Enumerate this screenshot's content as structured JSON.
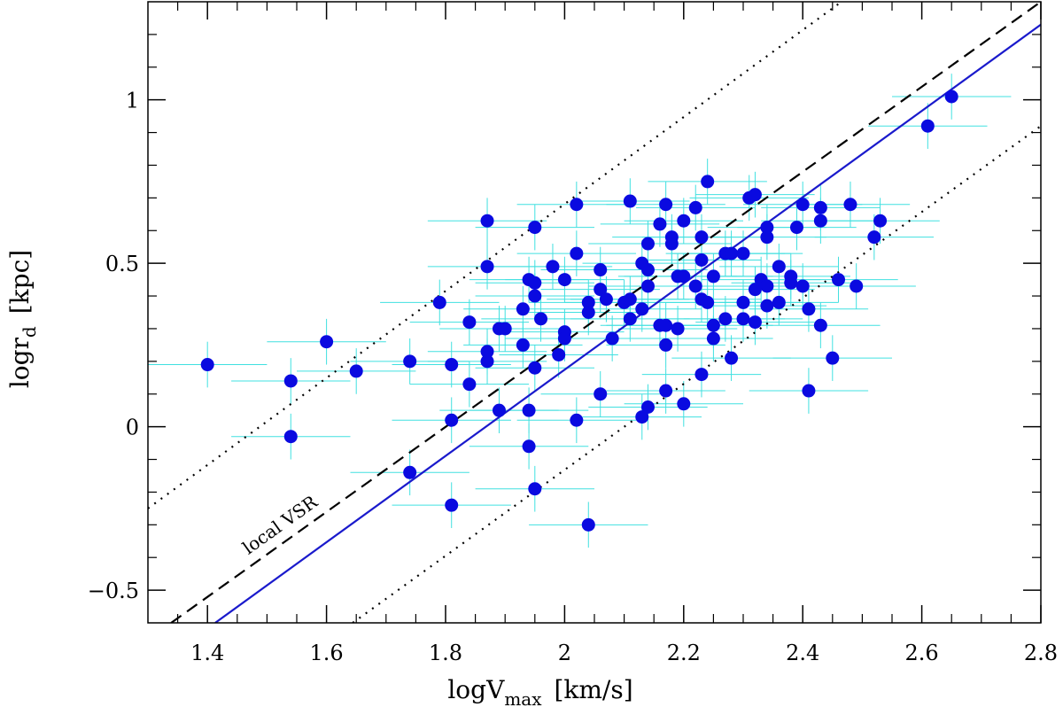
{
  "chart_data": {
    "type": "scatter",
    "xlabel": {
      "main": "logV",
      "sub": "max",
      "unit": "[km/s]"
    },
    "ylabel": {
      "main": "logr",
      "sub": "d",
      "unit": "[kpc]"
    },
    "xlim": [
      1.3,
      2.8
    ],
    "ylim": [
      -0.6,
      1.3
    ],
    "xticks": [
      1.4,
      1.6,
      1.8,
      2,
      2.2,
      2.4,
      2.6,
      2.8
    ],
    "yticks": [
      {
        "value": -0.5,
        "label": "−0.5"
      },
      0,
      0.5,
      1
    ],
    "xminor": [
      1.35,
      1.45,
      1.5,
      1.55,
      1.65,
      1.7,
      1.75,
      1.85,
      1.9,
      1.95,
      2.05,
      2.1,
      2.15,
      2.25,
      2.3,
      2.35,
      2.45,
      2.5,
      2.55,
      2.65,
      2.7,
      2.75
    ],
    "yminor": [
      -0.4,
      -0.3,
      -0.2,
      -0.1,
      0.1,
      0.2,
      0.3,
      0.4,
      0.6,
      0.7,
      0.8,
      0.9,
      1.1,
      1.2
    ],
    "point_color": "#0a0ae0",
    "error_color": "#40e0e0",
    "xerr": 0.1,
    "yerr": 0.07,
    "x": [
      1.4,
      1.54,
      1.54,
      1.6,
      1.65,
      1.74,
      1.74,
      1.79,
      1.81,
      1.81,
      1.81,
      1.84,
      1.84,
      1.87,
      1.87,
      1.87,
      1.87,
      1.89,
      1.89,
      1.9,
      1.93,
      1.93,
      1.94,
      1.94,
      1.94,
      1.95,
      1.95,
      1.95,
      1.95,
      1.95,
      1.96,
      1.98,
      1.99,
      2.0,
      2.0,
      2.0,
      2.02,
      2.02,
      2.02,
      2.04,
      2.04,
      2.04,
      2.06,
      2.06,
      2.06,
      2.07,
      2.08,
      2.1,
      2.11,
      2.11,
      2.11,
      2.13,
      2.13,
      2.13,
      2.14,
      2.14,
      2.14,
      2.14,
      2.16,
      2.16,
      2.17,
      2.17,
      2.17,
      2.17,
      2.18,
      2.18,
      2.19,
      2.19,
      2.2,
      2.2,
      2.2,
      2.22,
      2.22,
      2.23,
      2.23,
      2.23,
      2.23,
      2.24,
      2.24,
      2.25,
      2.25,
      2.25,
      2.27,
      2.27,
      2.28,
      2.28,
      2.3,
      2.3,
      2.3,
      2.31,
      2.32,
      2.32,
      2.32,
      2.33,
      2.34,
      2.34,
      2.34,
      2.34,
      2.36,
      2.36,
      2.38,
      2.38,
      2.39,
      2.4,
      2.4,
      2.41,
      2.41,
      2.43,
      2.43,
      2.43,
      2.45,
      2.46,
      2.48,
      2.49,
      2.52,
      2.53,
      2.61,
      2.65
    ],
    "y": [
      0.19,
      0.14,
      -0.03,
      0.26,
      0.17,
      0.2,
      -0.14,
      0.38,
      0.19,
      0.02,
      -0.24,
      0.13,
      0.32,
      0.63,
      0.49,
      0.23,
      0.2,
      0.3,
      0.05,
      0.3,
      0.25,
      0.36,
      0.05,
      0.45,
      -0.06,
      0.18,
      0.61,
      0.4,
      0.44,
      -0.19,
      0.33,
      0.49,
      0.22,
      0.29,
      0.27,
      0.45,
      0.53,
      0.68,
      0.02,
      0.35,
      0.38,
      -0.3,
      0.48,
      0.42,
      0.1,
      0.39,
      0.27,
      0.38,
      0.69,
      0.39,
      0.33,
      0.5,
      0.03,
      0.36,
      0.06,
      0.56,
      0.43,
      0.48,
      0.62,
      0.31,
      0.68,
      0.31,
      0.25,
      0.11,
      0.56,
      0.58,
      0.46,
      0.3,
      0.46,
      0.63,
      0.07,
      0.67,
      0.43,
      0.51,
      0.58,
      0.39,
      0.16,
      0.75,
      0.38,
      0.46,
      0.31,
      0.27,
      0.33,
      0.53,
      0.21,
      0.53,
      0.53,
      0.33,
      0.38,
      0.7,
      0.71,
      0.42,
      0.32,
      0.45,
      0.43,
      0.61,
      0.58,
      0.37,
      0.49,
      0.38,
      0.46,
      0.44,
      0.61,
      0.68,
      0.43,
      0.36,
      0.11,
      0.67,
      0.63,
      0.31,
      0.21,
      0.45,
      0.68,
      0.43,
      0.58,
      0.63,
      0.92,
      1.01
    ],
    "lines": [
      {
        "style": "solid",
        "color": "#1a1acc",
        "x": [
          1.413,
          2.8
        ],
        "y": [
          -0.6,
          1.23
        ]
      },
      {
        "style": "dashed",
        "color": "#000000",
        "x": [
          1.339,
          2.8
        ],
        "y": [
          -0.6,
          1.3
        ]
      },
      {
        "style": "dotted",
        "color": "#000000",
        "x": [
          1.3,
          2.465
        ],
        "y": [
          -0.25,
          1.3
        ]
      },
      {
        "style": "dotted",
        "color": "#000000",
        "x": [
          1.644,
          2.8
        ],
        "y": [
          -0.6,
          0.92
        ]
      }
    ],
    "annotation": "local VSR"
  }
}
